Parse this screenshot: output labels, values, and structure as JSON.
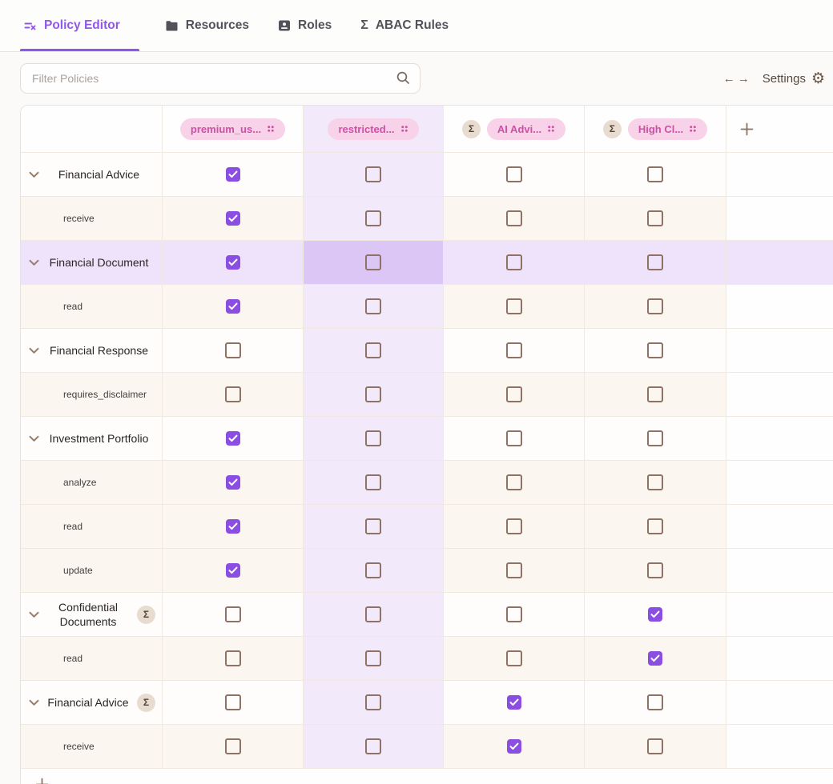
{
  "tabs": [
    {
      "label": "Policy Editor",
      "active": true
    },
    {
      "label": "Resources",
      "active": false
    },
    {
      "label": "Roles",
      "active": false
    },
    {
      "label": "ABAC Rules",
      "active": false
    }
  ],
  "toolbar": {
    "filter_placeholder": "Filter Policies",
    "settings_label": "Settings"
  },
  "icons": {
    "sigma_glyph": "Σ",
    "gear_glyph": "⚙",
    "arrow_left_glyph": "←",
    "arrow_right_glyph": "→",
    "tab_policy_editor": "list-x-icon",
    "tab_resources": "folder-icon",
    "tab_roles": "contact-card-icon",
    "tab_abac": "sigma-icon",
    "search": "search-icon",
    "column_drag": "grip-dots-icon",
    "collapse": "chevron-down-icon",
    "add": "plus-icon"
  },
  "colors": {
    "accent_purple": "#8f55ec",
    "checkbox_checked": "#8b4ee2",
    "pill_bg": "#f8d2e9",
    "pill_text": "#ce4fa5",
    "sigma_badge_bg": "#e8dcd1",
    "sigma_badge_text": "#544335",
    "column_tint": "#f2eafa",
    "row_highlight": "#efe3fb",
    "highlight_intersection": "#dcc6f6",
    "action_row_bg": "#fbf6f0",
    "unchecked_border": "#8d7265"
  },
  "matrix": {
    "columns": [
      {
        "label": "premium_us...",
        "sigma": false,
        "tinted": false
      },
      {
        "label": "restricted...",
        "sigma": false,
        "tinted": true
      },
      {
        "label": "AI Advi...",
        "sigma": true,
        "tinted": false
      },
      {
        "label": "High Cl...",
        "sigma": true,
        "tinted": false
      }
    ],
    "rows": [
      {
        "kind": "resource",
        "label": "Financial Advice",
        "sigma": false,
        "highlighted": false,
        "checks": [
          true,
          false,
          false,
          false
        ]
      },
      {
        "kind": "action",
        "label": "receive",
        "sigma": false,
        "highlighted": false,
        "checks": [
          true,
          false,
          false,
          false
        ]
      },
      {
        "kind": "resource",
        "label": "Financial Document",
        "sigma": false,
        "highlighted": true,
        "checks": [
          true,
          false,
          false,
          false
        ]
      },
      {
        "kind": "action",
        "label": "read",
        "sigma": false,
        "highlighted": false,
        "checks": [
          true,
          false,
          false,
          false
        ]
      },
      {
        "kind": "resource",
        "label": "Financial Response",
        "sigma": false,
        "highlighted": false,
        "checks": [
          false,
          false,
          false,
          false
        ]
      },
      {
        "kind": "action",
        "label": "requires_disclaimer",
        "sigma": false,
        "highlighted": false,
        "checks": [
          false,
          false,
          false,
          false
        ]
      },
      {
        "kind": "resource",
        "label": "Investment Portfolio",
        "sigma": false,
        "highlighted": false,
        "checks": [
          true,
          false,
          false,
          false
        ]
      },
      {
        "kind": "action",
        "label": "analyze",
        "sigma": false,
        "highlighted": false,
        "checks": [
          true,
          false,
          false,
          false
        ]
      },
      {
        "kind": "action",
        "label": "read",
        "sigma": false,
        "highlighted": false,
        "checks": [
          true,
          false,
          false,
          false
        ]
      },
      {
        "kind": "action",
        "label": "update",
        "sigma": false,
        "highlighted": false,
        "checks": [
          true,
          false,
          false,
          false
        ]
      },
      {
        "kind": "resource",
        "label": "Confidential Documents",
        "sigma": true,
        "highlighted": false,
        "checks": [
          false,
          false,
          false,
          true
        ]
      },
      {
        "kind": "action",
        "label": "read",
        "sigma": false,
        "highlighted": false,
        "checks": [
          false,
          false,
          false,
          true
        ]
      },
      {
        "kind": "resource",
        "label": "Financial Advice",
        "sigma": true,
        "highlighted": false,
        "checks": [
          false,
          false,
          true,
          false
        ]
      },
      {
        "kind": "action",
        "label": "receive",
        "sigma": false,
        "highlighted": false,
        "checks": [
          false,
          false,
          true,
          false
        ]
      }
    ]
  }
}
